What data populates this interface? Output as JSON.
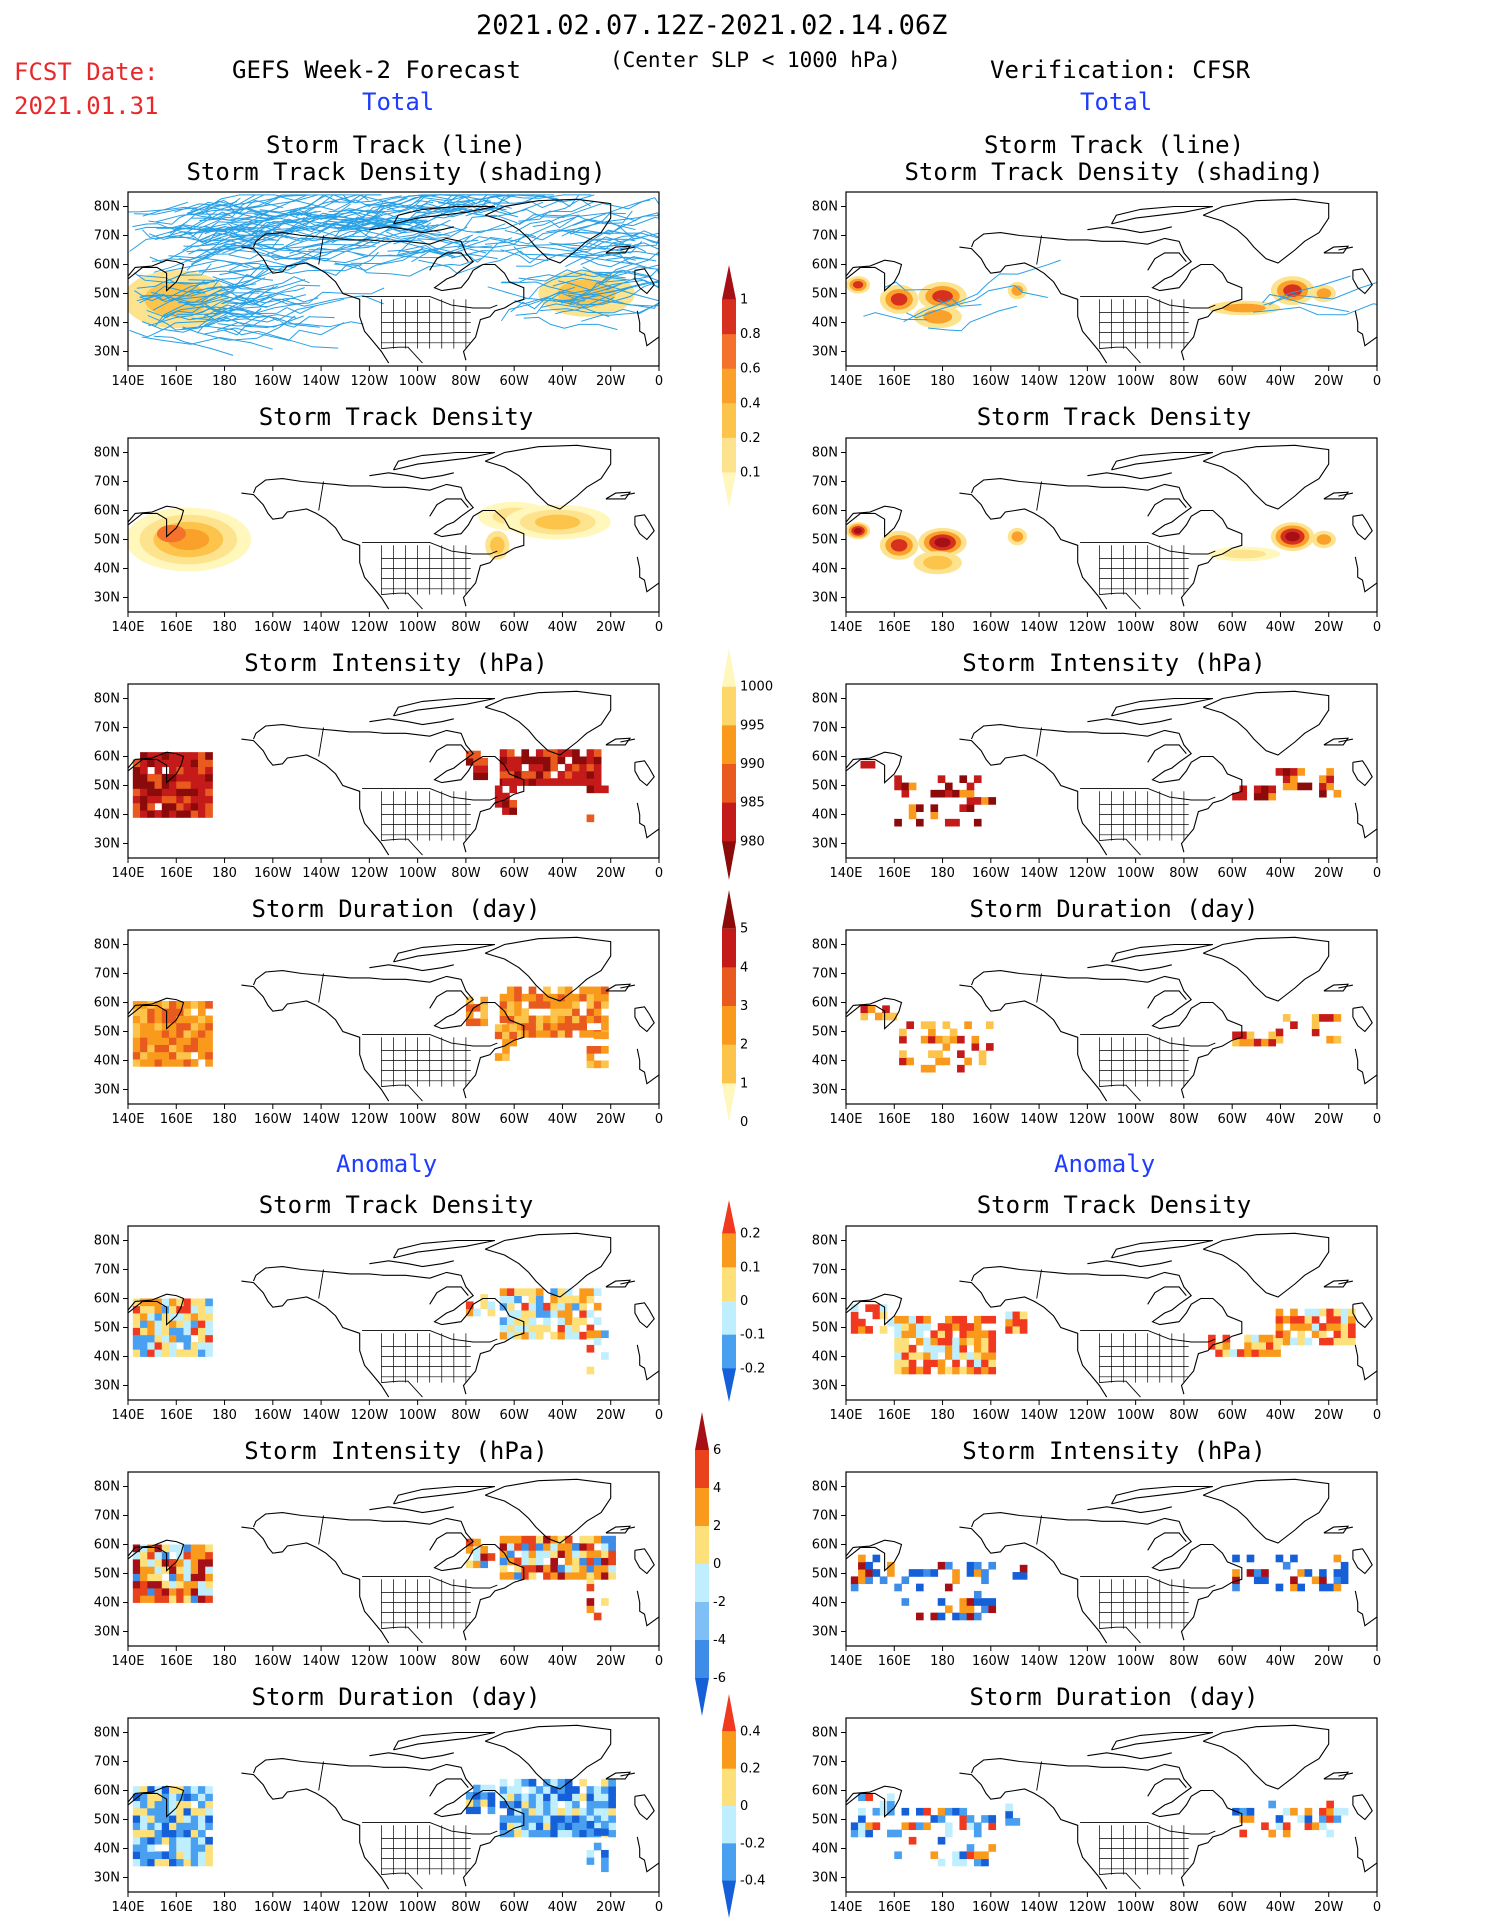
{
  "header": {
    "date_range": "2021.02.07.12Z-2021.02.14.06Z",
    "subtitle": "(Center SLP < 1000 hPa)",
    "fcst_label": "FCST Date:",
    "fcst_date": "2021.01.31",
    "left_title": "GEFS Week-2 Forecast",
    "right_title": "Verification: CFSR",
    "section_total": "Total",
    "section_anomaly": "Anomaly"
  },
  "panel_titles": {
    "track": [
      "Storm Track (line)",
      "Storm Track Density (shading)"
    ],
    "density": "Storm Track Density",
    "intensity": "Storm Intensity (hPa)",
    "duration": "Storm Duration (day)"
  },
  "axes": {
    "lat_labels": [
      "80N",
      "70N",
      "60N",
      "50N",
      "40N",
      "30N"
    ],
    "lon_labels": [
      "140E",
      "160E",
      "180",
      "160W",
      "140W",
      "120W",
      "100W",
      "80W",
      "60W",
      "40W",
      "20W",
      "0"
    ]
  },
  "colorbars": {
    "density_total": {
      "labels": [
        "1",
        "0.8",
        "0.6",
        "0.4",
        "0.2",
        "0.1"
      ],
      "colors": [
        "#a50f15",
        "#d7301f",
        "#f4722b",
        "#f9a12a",
        "#fdc44c",
        "#fee38f",
        "#fff7bc"
      ]
    },
    "intensity_total": {
      "labels": [
        "1000",
        "995",
        "990",
        "985",
        "980"
      ],
      "colors": [
        "#fff7bc",
        "#fdd76a",
        "#f99a1c",
        "#e85a1e",
        "#c41a1a",
        "#8b0a0a"
      ]
    },
    "duration_total": {
      "labels": [
        "5",
        "4",
        "3",
        "2",
        "1",
        "0"
      ],
      "colors": [
        "#8b0a0a",
        "#c41a1a",
        "#e85a1e",
        "#f99a1c",
        "#fdc44c",
        "#fff7bc"
      ]
    },
    "density_anom": {
      "labels": [
        "0.2",
        "0.1",
        "0",
        "-0.1",
        "-0.2"
      ],
      "colors": [
        "#f0391e",
        "#f99a1c",
        "#fde07a",
        "#bfefff",
        "#4aa0f0",
        "#1560d8"
      ]
    },
    "intensity_anom": {
      "labels": [
        "6",
        "4",
        "2",
        "0",
        "-2",
        "-4",
        "-6"
      ],
      "colors": [
        "#a50f15",
        "#e8431b",
        "#f99a1c",
        "#fde07a",
        "#bfefff",
        "#7ec0f5",
        "#3d8ce8",
        "#1560d8"
      ]
    },
    "duration_anom": {
      "labels": [
        "0.4",
        "0.2",
        "0",
        "-0.2",
        "-0.4"
      ],
      "colors": [
        "#f0391e",
        "#f99a1c",
        "#fde07a",
        "#bfefff",
        "#4aa0f0",
        "#1560d8"
      ]
    }
  }
}
